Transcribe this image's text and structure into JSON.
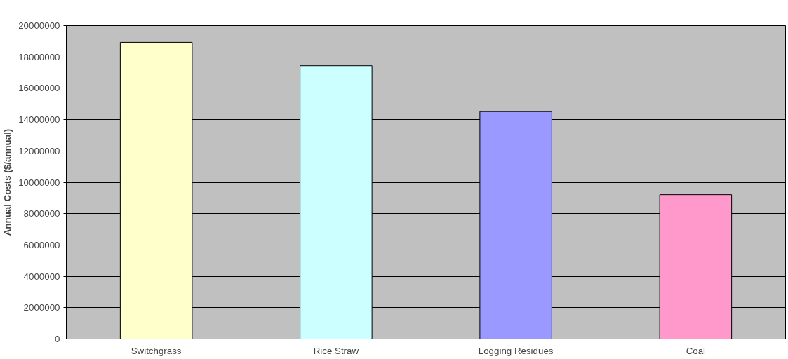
{
  "chart_data": {
    "type": "bar",
    "ylabel": "Annual Costs ($/annual)",
    "categories": [
      "Switchgrass",
      "Rice Straw",
      "Logging Residues",
      "Coal"
    ],
    "values": [
      18930000,
      17440000,
      14510000,
      9210000
    ],
    "colors": [
      "#ffffcc",
      "#ccffff",
      "#9999ff",
      "#ff99cc"
    ],
    "ylim": [
      0,
      20000000
    ],
    "yticks": [
      0,
      2000000,
      4000000,
      6000000,
      8000000,
      10000000,
      12000000,
      14000000,
      16000000,
      18000000,
      20000000
    ],
    "grid": "y"
  }
}
